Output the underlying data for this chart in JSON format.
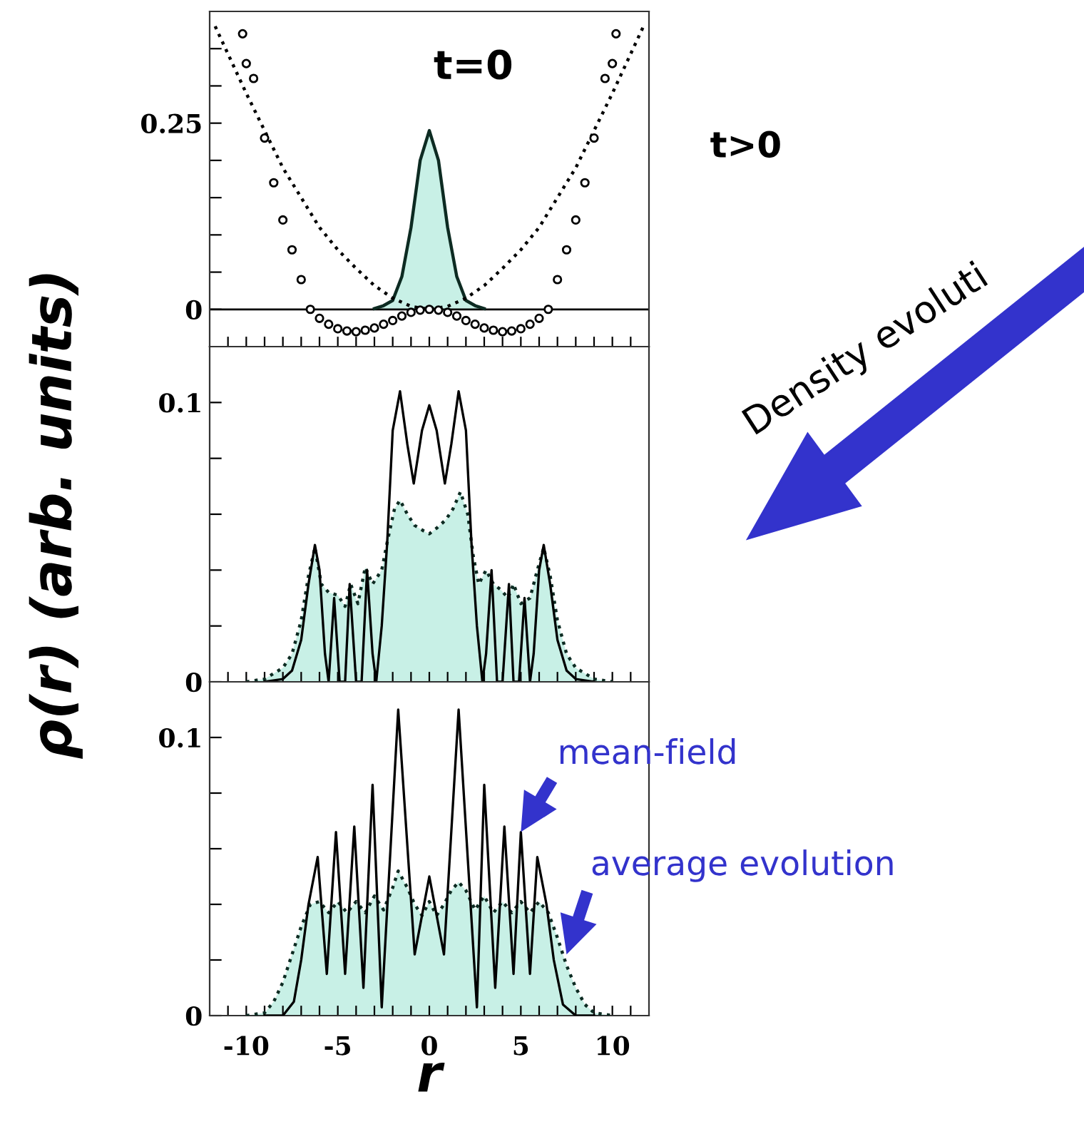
{
  "chart_data": [
    {
      "type": "line",
      "tick_labels": "y",
      "xlim": [
        -12,
        12
      ],
      "ylim": [
        -0.05,
        0.4
      ],
      "xticks": [
        {
          "value": -11,
          "label": null
        },
        {
          "value": -10,
          "label": null
        },
        {
          "value": -9,
          "label": null
        },
        {
          "value": -8,
          "label": null
        },
        {
          "value": -7,
          "label": null
        },
        {
          "value": -6,
          "label": null
        },
        {
          "value": -5,
          "label": null
        },
        {
          "value": -4,
          "label": null
        },
        {
          "value": -3,
          "label": null
        },
        {
          "value": -2,
          "label": null
        },
        {
          "value": -1,
          "label": null
        },
        {
          "value": 0,
          "label": null
        },
        {
          "value": 1,
          "label": null
        },
        {
          "value": 2,
          "label": null
        },
        {
          "value": 3,
          "label": null
        },
        {
          "value": 4,
          "label": null
        },
        {
          "value": 5,
          "label": null
        },
        {
          "value": 6,
          "label": null
        },
        {
          "value": 7,
          "label": null
        },
        {
          "value": 8,
          "label": null
        },
        {
          "value": 9,
          "label": null
        },
        {
          "value": 10,
          "label": null
        },
        {
          "value": 11,
          "label": null
        }
      ],
      "yticks": [
        0,
        {
          "value": 0.05,
          "label": null
        },
        {
          "value": 0.1,
          "label": null
        },
        {
          "value": 0.15,
          "label": null
        },
        {
          "value": 0.2,
          "label": null
        },
        0.25,
        {
          "value": 0.3,
          "label": null
        },
        {
          "value": 0.35,
          "label": null
        }
      ],
      "ref_lines": [
        {
          "axis": "y",
          "value": 0,
          "color": "#000000",
          "line_style": "solid"
        }
      ],
      "annotations": [
        "t=0",
        "t>0",
        "Density evoluti"
      ],
      "series": [
        {
          "type": "area",
          "color": "#c8f0e6",
          "line_style": "solid",
          "x": [
            -3,
            -2.5,
            -2,
            -1.5,
            -1,
            -0.5,
            0,
            0.5,
            1,
            1.5,
            2,
            2.5,
            3
          ],
          "values": [
            0.001,
            0.005,
            0.012,
            0.044,
            0.11,
            0.2,
            0.24,
            0.2,
            0.11,
            0.044,
            0.012,
            0.005,
            0.001
          ]
        },
        {
          "color": "#000000",
          "line_style": "dotted",
          "x": [
            -11.7,
            -10,
            -9,
            -8,
            -7,
            -6,
            -5,
            -4,
            -3,
            -2,
            -1,
            0,
            1,
            2,
            3,
            4,
            5,
            6,
            7,
            8,
            9,
            10,
            11.7
          ],
          "values": [
            0.38,
            0.29,
            0.24,
            0.19,
            0.15,
            0.11,
            0.08,
            0.055,
            0.032,
            0.015,
            0.004,
            0,
            0.004,
            0.015,
            0.032,
            0.055,
            0.08,
            0.11,
            0.15,
            0.19,
            0.24,
            0.29,
            0.38
          ]
        },
        {
          "type": "scatter",
          "color": "#000000",
          "marker": "circle",
          "x": [
            -10.2,
            -10,
            -9.6,
            -9,
            -8.5,
            -8,
            -7.5,
            -7,
            -6.5,
            -6,
            -5.5,
            -5,
            -4.5,
            -4,
            -3.5,
            -3,
            -2.5,
            -2,
            -1.5,
            -1,
            -0.5,
            0,
            0.5,
            1,
            1.5,
            2,
            2.5,
            3,
            3.5,
            4,
            4.5,
            5,
            5.5,
            6,
            6.5,
            7,
            7.5,
            8,
            8.5,
            9,
            9.6,
            10,
            10.2
          ],
          "values": [
            0.37,
            0.33,
            0.31,
            0.23,
            0.17,
            0.12,
            0.08,
            0.04,
            0,
            -0.012,
            -0.02,
            -0.026,
            -0.029,
            -0.03,
            -0.028,
            -0.025,
            -0.02,
            -0.015,
            -0.009,
            -0.004,
            -0.001,
            0,
            -0.001,
            -0.004,
            -0.009,
            -0.015,
            -0.02,
            -0.025,
            -0.028,
            -0.03,
            -0.029,
            -0.026,
            -0.02,
            -0.012,
            0,
            0.04,
            0.08,
            0.12,
            0.17,
            0.23,
            0.31,
            0.33,
            0.37
          ]
        }
      ]
    },
    {
      "type": "line",
      "tick_labels": "y",
      "xlim": [
        -12,
        12
      ],
      "ylim": [
        0,
        0.12
      ],
      "ylabel": "ρ(r) (arb. units)",
      "xticks": [
        {
          "value": -11,
          "label": null
        },
        {
          "value": -10,
          "label": null
        },
        {
          "value": -9,
          "label": null
        },
        {
          "value": -8,
          "label": null
        },
        {
          "value": -7,
          "label": null
        },
        {
          "value": -6,
          "label": null
        },
        {
          "value": -5,
          "label": null
        },
        {
          "value": -4,
          "label": null
        },
        {
          "value": -3,
          "label": null
        },
        {
          "value": -2,
          "label": null
        },
        {
          "value": -1,
          "label": null
        },
        {
          "value": 0,
          "label": null
        },
        {
          "value": 1,
          "label": null
        },
        {
          "value": 2,
          "label": null
        },
        {
          "value": 3,
          "label": null
        },
        {
          "value": 4,
          "label": null
        },
        {
          "value": 5,
          "label": null
        },
        {
          "value": 6,
          "label": null
        },
        {
          "value": 7,
          "label": null
        },
        {
          "value": 8,
          "label": null
        },
        {
          "value": 9,
          "label": null
        },
        {
          "value": 10,
          "label": null
        },
        {
          "value": 11,
          "label": null
        }
      ],
      "yticks": [
        0,
        {
          "value": 0.02,
          "label": null
        },
        {
          "value": 0.04,
          "label": null
        },
        {
          "value": 0.06,
          "label": null
        },
        {
          "value": 0.08,
          "label": null
        },
        0.1
      ],
      "series": [
        {
          "type": "area",
          "color": "#c8f0e6",
          "line_style": "dotted",
          "x": [
            -10,
            -9,
            -8,
            -7.5,
            -7,
            -6.6,
            -6.25,
            -5.9,
            -5.5,
            -5,
            -4.6,
            -4.3,
            -3.9,
            -3.5,
            -3.1,
            -2.6,
            -2.3,
            -1.9,
            -1.6,
            -1.2,
            -0.8,
            -0.3,
            0,
            0.4,
            0.9,
            1.3,
            1.7,
            2.1,
            2.4,
            2.7,
            3.1,
            3.5,
            3.9,
            4.3,
            4.6,
            5,
            5.5,
            5.9,
            6.25,
            6.6,
            7,
            7.5,
            8,
            9,
            10
          ],
          "values": [
            0,
            0.001,
            0.005,
            0.01,
            0.022,
            0.038,
            0.048,
            0.035,
            0.032,
            0.031,
            0.027,
            0.035,
            0.028,
            0.041,
            0.035,
            0.04,
            0.05,
            0.062,
            0.065,
            0.06,
            0.056,
            0.054,
            0.053,
            0.055,
            0.058,
            0.062,
            0.068,
            0.06,
            0.045,
            0.035,
            0.04,
            0.035,
            0.033,
            0.03,
            0.035,
            0.028,
            0.03,
            0.04,
            0.048,
            0.038,
            0.022,
            0.01,
            0.005,
            0.001,
            0
          ]
        },
        {
          "color": "#000000",
          "line_style": "solid",
          "x": [
            -9,
            -8,
            -7.5,
            -7,
            -6.6,
            -6.25,
            -6,
            -5.7,
            -5.5,
            -5.2,
            -4.9,
            -4.6,
            -4.35,
            -4,
            -3.7,
            -3.4,
            -3.1,
            -2.9,
            -2.6,
            -2.3,
            -2,
            -1.6,
            -1.2,
            -0.85,
            -0.4,
            0,
            0.4,
            0.85,
            1.2,
            1.6,
            2,
            2.3,
            2.6,
            2.9,
            3.1,
            3.4,
            3.7,
            4,
            4.35,
            4.6,
            4.9,
            5.2,
            5.5,
            5.7,
            6,
            6.25,
            6.6,
            7,
            7.5,
            8,
            9
          ],
          "values": [
            0,
            0.001,
            0.004,
            0.015,
            0.035,
            0.049,
            0.04,
            0.01,
            0,
            0.03,
            0,
            0,
            0.035,
            0,
            0,
            0.04,
            0.01,
            0,
            0.02,
            0.05,
            0.09,
            0.104,
            0.085,
            0.071,
            0.09,
            0.099,
            0.09,
            0.071,
            0.085,
            0.104,
            0.09,
            0.05,
            0.02,
            0,
            0.01,
            0.04,
            0,
            0,
            0.035,
            0,
            0,
            0.03,
            0,
            0.01,
            0.04,
            0.049,
            0.035,
            0.015,
            0.004,
            0.001,
            0
          ]
        }
      ]
    },
    {
      "type": "line",
      "xlim": [
        -12,
        12
      ],
      "ylim": [
        0,
        0.12
      ],
      "xlabel": "r",
      "xticks": [
        {
          "value": -11,
          "label": null
        },
        -10,
        {
          "value": -9,
          "label": null
        },
        {
          "value": -8,
          "label": null
        },
        {
          "value": -7,
          "label": null
        },
        {
          "value": -6,
          "label": null
        },
        -5,
        {
          "value": -4,
          "label": null
        },
        {
          "value": -3,
          "label": null
        },
        {
          "value": -2,
          "label": null
        },
        {
          "value": -1,
          "label": null
        },
        0,
        {
          "value": 1,
          "label": null
        },
        {
          "value": 2,
          "label": null
        },
        {
          "value": 3,
          "label": null
        },
        {
          "value": 4,
          "label": null
        },
        5,
        {
          "value": 6,
          "label": null
        },
        {
          "value": 7,
          "label": null
        },
        {
          "value": 8,
          "label": null
        },
        {
          "value": 9,
          "label": null
        },
        10,
        {
          "value": 11,
          "label": null
        }
      ],
      "yticks": [
        0,
        {
          "value": 0.02,
          "label": null
        },
        {
          "value": 0.04,
          "label": null
        },
        {
          "value": 0.06,
          "label": null
        },
        {
          "value": 0.08,
          "label": null
        },
        0.1
      ],
      "annotations": [
        {
          "text": "mean-field",
          "x": 5.0,
          "y": 0.066
        },
        {
          "text": "average evolution",
          "x": 7.5,
          "y": 0.022
        }
      ],
      "series": [
        {
          "type": "area",
          "color": "#c8f0e6",
          "line_style": "dotted",
          "x": [
            -10,
            -9,
            -8.5,
            -8,
            -7.5,
            -7,
            -6.5,
            -6,
            -5.5,
            -5,
            -4.5,
            -4,
            -3.5,
            -3,
            -2.5,
            -2,
            -1.7,
            -1.2,
            -0.8,
            -0.4,
            0,
            0.4,
            0.8,
            1.2,
            1.6,
            2,
            2.5,
            3,
            3.5,
            4,
            4.5,
            5,
            5.5,
            6,
            6.5,
            7,
            7.5,
            8,
            8.5,
            9,
            10
          ],
          "values": [
            0,
            0.001,
            0.005,
            0.012,
            0.022,
            0.032,
            0.04,
            0.041,
            0.037,
            0.041,
            0.037,
            0.041,
            0.037,
            0.043,
            0.038,
            0.046,
            0.052,
            0.046,
            0.04,
            0.036,
            0.041,
            0.036,
            0.04,
            0.045,
            0.048,
            0.045,
            0.038,
            0.043,
            0.037,
            0.041,
            0.037,
            0.041,
            0.037,
            0.041,
            0.037,
            0.028,
            0.018,
            0.01,
            0.004,
            0.001,
            0
          ]
        },
        {
          "color": "#000000",
          "line_style": "solid",
          "x": [
            -9,
            -8,
            -7.4,
            -7,
            -6.6,
            -6.1,
            -5.6,
            -5.1,
            -4.6,
            -4.1,
            -3.6,
            -3.1,
            -2.6,
            -1.7,
            -0.8,
            0,
            0.8,
            1.6,
            2.6,
            3,
            3.6,
            4.1,
            4.6,
            5,
            5.5,
            5.9,
            6.4,
            6.8,
            7.3,
            8,
            9
          ],
          "values": [
            0,
            0,
            0.005,
            0.02,
            0.04,
            0.057,
            0.015,
            0.066,
            0.015,
            0.068,
            0.01,
            0.083,
            0.003,
            0.11,
            0.022,
            0.05,
            0.022,
            0.11,
            0.003,
            0.083,
            0.01,
            0.068,
            0.015,
            0.066,
            0.015,
            0.057,
            0.04,
            0.02,
            0.004,
            0,
            0
          ]
        }
      ]
    }
  ]
}
